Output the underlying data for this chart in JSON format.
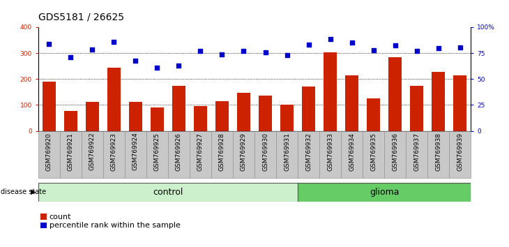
{
  "title": "GDS5181 / 26625",
  "samples": [
    "GSM769920",
    "GSM769921",
    "GSM769922",
    "GSM769923",
    "GSM769924",
    "GSM769925",
    "GSM769926",
    "GSM769927",
    "GSM769928",
    "GSM769929",
    "GSM769930",
    "GSM769931",
    "GSM769932",
    "GSM769933",
    "GSM769934",
    "GSM769935",
    "GSM769936",
    "GSM769937",
    "GSM769938",
    "GSM769939"
  ],
  "bar_values": [
    190,
    78,
    112,
    243,
    112,
    90,
    175,
    95,
    115,
    148,
    135,
    100,
    172,
    302,
    215,
    125,
    285,
    175,
    228,
    215
  ],
  "dot_values": [
    335,
    283,
    315,
    342,
    270,
    245,
    252,
    308,
    295,
    308,
    302,
    292,
    332,
    355,
    340,
    310,
    330,
    308,
    318,
    322
  ],
  "bar_color": "#cc2200",
  "dot_color": "#0000cc",
  "ylim_left": [
    0,
    400
  ],
  "ylim_right": [
    0,
    100
  ],
  "yticks_left": [
    0,
    100,
    200,
    300,
    400
  ],
  "yticks_right": [
    0,
    25,
    50,
    75,
    100
  ],
  "ytick_labels_right": [
    "0",
    "25",
    "50",
    "75",
    "100%"
  ],
  "grid_values": [
    100,
    200,
    300
  ],
  "control_count": 12,
  "glioma_count": 8,
  "control_label": "control",
  "glioma_label": "glioma",
  "disease_state_label": "disease state",
  "legend_bar_label": "count",
  "legend_dot_label": "percentile rank within the sample",
  "background_color": "#ffffff",
  "plot_bg_color": "#ffffff",
  "label_bg_color": "#c8c8c8",
  "control_bg_color": "#ccf0cc",
  "glioma_bg_color": "#66cc66",
  "title_fontsize": 10,
  "tick_fontsize": 6.5,
  "label_fontsize": 9
}
